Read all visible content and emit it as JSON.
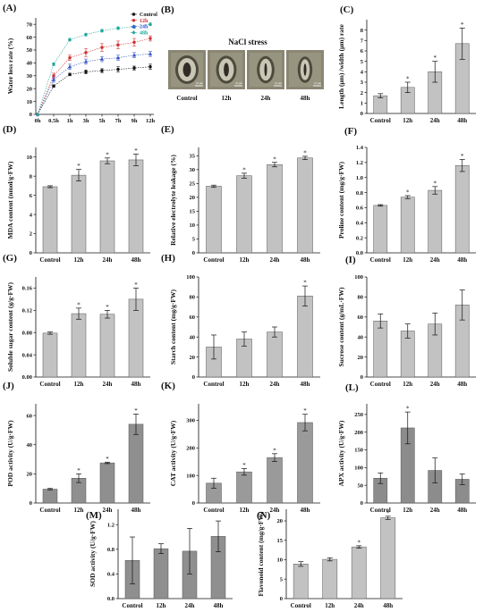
{
  "figure": {
    "micrograph": {
      "panel_label": "(B)",
      "title": "NaCl stress",
      "images": [
        {
          "caption": "Control",
          "scale": "10 μm"
        },
        {
          "caption": "12h",
          "scale": "10 μm"
        },
        {
          "caption": "24h",
          "scale": "10 μm"
        },
        {
          "caption": "48h",
          "scale": "10 μm"
        }
      ]
    }
  },
  "chart_data": [
    {
      "id": "A",
      "panel_label": "(A)",
      "type": "line",
      "x": [
        "0h",
        "0.5h",
        "1h",
        "3h",
        "5h",
        "7h",
        "9h",
        "12h"
      ],
      "ylabel": "Water loss rate (%)",
      "ylim": [
        0,
        75
      ],
      "yticks": [
        0,
        10,
        20,
        30,
        40,
        50,
        60,
        70
      ],
      "legend_position": "top-right",
      "series": [
        {
          "name": "Control",
          "color": "#111111",
          "marker": "circle",
          "values": [
            0,
            22,
            31,
            33,
            34,
            35,
            36,
            37
          ],
          "errors": [
            0,
            1,
            1,
            1.5,
            1.5,
            2,
            1.5,
            2
          ]
        },
        {
          "name": "12h",
          "color": "#d42d2d",
          "marker": "circle",
          "values": [
            0,
            30,
            44,
            48,
            52,
            54,
            56,
            59
          ],
          "errors": [
            0,
            2,
            2,
            3,
            3,
            3,
            3,
            2
          ]
        },
        {
          "name": "24h",
          "color": "#3656c9",
          "marker": "triangle",
          "values": [
            0,
            27,
            37,
            41,
            43,
            44,
            46,
            47
          ],
          "errors": [
            0,
            2,
            2,
            2,
            2,
            2,
            2,
            2
          ]
        },
        {
          "name": "48h",
          "color": "#1fa89c",
          "marker": "diamond",
          "values": [
            0,
            39,
            58,
            62,
            65,
            67,
            68,
            70
          ],
          "errors": [
            0,
            1,
            1,
            1,
            1,
            1,
            1,
            1
          ]
        }
      ]
    },
    {
      "id": "C",
      "panel_label": "(C)",
      "type": "bar",
      "categories": [
        "Control",
        "12h",
        "24h",
        "48h"
      ],
      "values": [
        1.7,
        2.5,
        4.0,
        6.7
      ],
      "errors": [
        0.2,
        0.5,
        1.0,
        1.5
      ],
      "stars": [
        false,
        true,
        true,
        true
      ],
      "ylabel": "Length (μm) /width (μm) rate",
      "ylim": [
        0,
        9
      ],
      "yticks": [
        0,
        1,
        2,
        3,
        4,
        5,
        6,
        7,
        8
      ]
    },
    {
      "id": "D",
      "panel_label": "(D)",
      "type": "bar",
      "categories": [
        "Control",
        "12h",
        "24h",
        "48h"
      ],
      "values": [
        6.9,
        8.1,
        9.6,
        9.7
      ],
      "errors": [
        0.1,
        0.6,
        0.3,
        0.6
      ],
      "stars": [
        false,
        true,
        true,
        true
      ],
      "ylabel": "MDA content (nmol/g·FW)",
      "ylim": [
        0,
        11
      ],
      "yticks": [
        0,
        2,
        4,
        6,
        8,
        10
      ]
    },
    {
      "id": "E",
      "panel_label": "(E)",
      "type": "bar",
      "categories": [
        "Control",
        "12h",
        "24h",
        "48h"
      ],
      "values": [
        24,
        27.8,
        31.8,
        34.2
      ],
      "errors": [
        0.4,
        0.9,
        0.8,
        0.6
      ],
      "stars": [
        false,
        true,
        true,
        true
      ],
      "ylabel": "Relative electrolyte leakage (%)",
      "ylim": [
        0,
        38
      ],
      "yticks": [
        0,
        5,
        10,
        15,
        20,
        25,
        30,
        35
      ]
    },
    {
      "id": "F",
      "panel_label": "(F)",
      "type": "bar",
      "categories": [
        "Control",
        "12h",
        "24h",
        "48h"
      ],
      "values": [
        0.63,
        0.74,
        0.83,
        1.16
      ],
      "errors": [
        0.01,
        0.02,
        0.05,
        0.08
      ],
      "stars": [
        false,
        true,
        true,
        true
      ],
      "ylabel": "Proline content (mg/g·FW)",
      "ylim": [
        0,
        1.4
      ],
      "yticks": [
        0,
        0.2,
        0.4,
        0.6,
        0.8,
        1.0,
        1.2,
        1.4
      ]
    },
    {
      "id": "G",
      "panel_label": "(G)",
      "type": "bar",
      "categories": [
        "Control",
        "12h",
        "24h",
        "48h"
      ],
      "values": [
        0.079,
        0.114,
        0.113,
        0.14
      ],
      "errors": [
        0.002,
        0.01,
        0.007,
        0.02
      ],
      "stars": [
        false,
        true,
        true,
        true
      ],
      "ylabel": "Soluble sugar content (g/g·FW)",
      "ylim": [
        0,
        0.18
      ],
      "yticks": [
        0.0,
        0.04,
        0.08,
        0.12,
        0.16
      ]
    },
    {
      "id": "H",
      "panel_label": "(H)",
      "type": "bar",
      "categories": [
        "Control",
        "12h",
        "24h",
        "48h"
      ],
      "values": [
        30,
        38,
        45,
        81
      ],
      "errors": [
        12,
        7,
        5,
        10
      ],
      "stars": [
        false,
        false,
        false,
        true
      ],
      "ylabel": "Starch content (mg/g·FW)",
      "ylim": [
        0,
        100
      ],
      "yticks": [
        0,
        20,
        40,
        60,
        80,
        100
      ]
    },
    {
      "id": "I",
      "panel_label": "(I)",
      "type": "bar",
      "categories": [
        "Control",
        "12h",
        "24h",
        "48h"
      ],
      "values": [
        56,
        46,
        53,
        72
      ],
      "errors": [
        7,
        7,
        11,
        15
      ],
      "stars": [
        false,
        false,
        false,
        false
      ],
      "ylabel": "Sucrose content (g/mL·FW)",
      "ylim": [
        0,
        100
      ],
      "yticks": [
        0,
        20,
        40,
        60,
        80,
        100
      ]
    },
    {
      "id": "J",
      "panel_label": "(J)",
      "type": "bar",
      "categories": [
        "Control",
        "12h",
        "24h",
        "48h"
      ],
      "values": [
        9.5,
        17,
        27.5,
        54
      ],
      "errors": [
        0.5,
        3,
        0.5,
        7
      ],
      "stars": [
        false,
        true,
        true,
        true
      ],
      "ylabel": "POD activity (U/g·FW)",
      "ylim": [
        0,
        68
      ],
      "yticks": [
        0,
        20,
        40,
        60
      ]
    },
    {
      "id": "K",
      "panel_label": "(K)",
      "type": "bar",
      "categories": [
        "Control",
        "12h",
        "24h",
        "48h"
      ],
      "values": [
        72,
        113,
        165,
        292
      ],
      "errors": [
        18,
        12,
        14,
        30
      ],
      "stars": [
        false,
        true,
        true,
        true
      ],
      "ylabel": "CAT activity (U/g·FW)",
      "ylim": [
        0,
        360
      ],
      "yticks": [
        0,
        100,
        200,
        300
      ]
    },
    {
      "id": "L",
      "panel_label": "(L)",
      "type": "bar",
      "categories": [
        "Control",
        "12h",
        "24h",
        "48h"
      ],
      "values": [
        70,
        212,
        92,
        67
      ],
      "errors": [
        15,
        45,
        35,
        15
      ],
      "stars": [
        false,
        true,
        false,
        false
      ],
      "ylabel": "APX activity (U/g·FW)",
      "ylim": [
        0,
        280
      ],
      "yticks": [
        0,
        50,
        100,
        150,
        200,
        250
      ]
    },
    {
      "id": "M",
      "panel_label": "(M)",
      "type": "bar",
      "categories": [
        "Control",
        "12h",
        "24h",
        "48h"
      ],
      "values": [
        0.62,
        0.81,
        0.77,
        1.01
      ],
      "errors": [
        0.38,
        0.08,
        0.37,
        0.25
      ],
      "stars": [
        false,
        false,
        false,
        false
      ],
      "ylabel": "SOD activity (U/g·FW)",
      "ylim": [
        0,
        1.45
      ],
      "yticks": [
        0.0,
        0.4,
        0.8,
        1.2
      ]
    },
    {
      "id": "N",
      "panel_label": "(N)",
      "type": "bar",
      "categories": [
        "Control",
        "12h",
        "24h",
        "48h"
      ],
      "values": [
        8.9,
        10.1,
        13.3,
        20.8
      ],
      "errors": [
        0.6,
        0.4,
        0.3,
        0.4
      ],
      "stars": [
        false,
        false,
        true,
        true
      ],
      "ylabel": "Flavonoid content (mg/g·FW)",
      "ylim": [
        0,
        23
      ],
      "yticks": [
        0,
        5,
        10,
        15,
        20
      ]
    }
  ]
}
